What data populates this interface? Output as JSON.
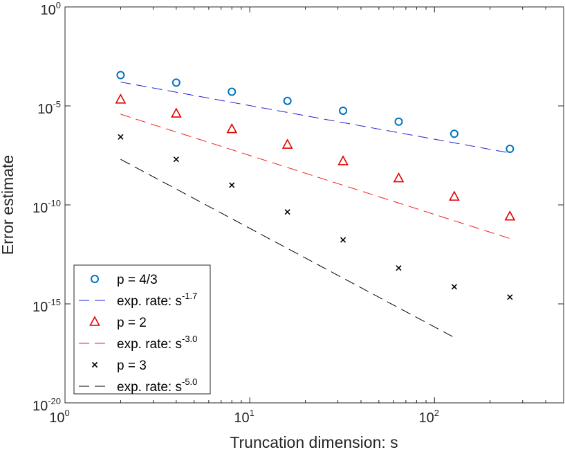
{
  "chart_data": {
    "type": "scatter",
    "xscale": "log",
    "yscale": "log",
    "xlabel": "Truncation dimension: s",
    "ylabel": "Error estimate",
    "xlim": [
      1,
      500
    ],
    "ylim": [
      1e-20,
      1
    ],
    "grid": false,
    "legend_position": "bottom-left",
    "x_ticks": [
      {
        "value": 1,
        "base": "10",
        "exp": "0"
      },
      {
        "value": 10,
        "base": "10",
        "exp": "1"
      },
      {
        "value": 100,
        "base": "10",
        "exp": "2"
      }
    ],
    "y_ticks": [
      {
        "value": 1,
        "base": "10",
        "exp": "0"
      },
      {
        "value": 1e-05,
        "base": "10",
        "exp": "-5"
      },
      {
        "value": 1e-10,
        "base": "10",
        "exp": "-10"
      },
      {
        "value": 1e-15,
        "base": "10",
        "exp": "-15"
      },
      {
        "value": 1e-20,
        "base": "10",
        "exp": "-20"
      }
    ],
    "series": [
      {
        "name": "p = 4/3",
        "kind": "marker",
        "marker": "circle",
        "color": "#0072BD",
        "x": [
          2,
          4,
          8,
          16,
          32,
          64,
          128,
          256
        ],
        "y": [
          0.00036,
          0.00015,
          5.2e-05,
          1.8e-05,
          5.7e-06,
          1.6e-06,
          3.9e-07,
          6.8e-08
        ]
      },
      {
        "name": "exp. rate: s",
        "exponent": "-1.7",
        "kind": "line",
        "color": "#1f1fd6",
        "x": [
          2,
          256
        ],
        "y": [
          0.00016,
          4.2e-08
        ]
      },
      {
        "name": "p = 2",
        "kind": "marker",
        "marker": "triangle",
        "color": "#e00000",
        "x": [
          2,
          4,
          8,
          16,
          32,
          64,
          128,
          256
        ],
        "y": [
          2.1e-05,
          4.1e-06,
          6.7e-07,
          1.1e-07,
          1.6e-08,
          2.2e-09,
          2.6e-10,
          2.6e-11
        ]
      },
      {
        "name": "exp. rate: s",
        "exponent": "-3.0",
        "kind": "line",
        "color": "#ee2222",
        "x": [
          2,
          256
        ],
        "y": [
          3.8e-06,
          2e-12
        ]
      },
      {
        "name": "p = 3",
        "kind": "marker",
        "marker": "x",
        "color": "#000000",
        "x": [
          2,
          4,
          8,
          16,
          32,
          64,
          128,
          256
        ],
        "y": [
          2.7e-07,
          2e-08,
          1e-09,
          4.4e-11,
          1.7e-12,
          6.5e-14,
          7.3e-15,
          2.2e-15
        ]
      },
      {
        "name": "exp. rate: s",
        "exponent": "-5.0",
        "kind": "line",
        "color": "#000000",
        "x": [
          2,
          128
        ],
        "y": [
          2e-08,
          2e-17
        ]
      }
    ]
  }
}
